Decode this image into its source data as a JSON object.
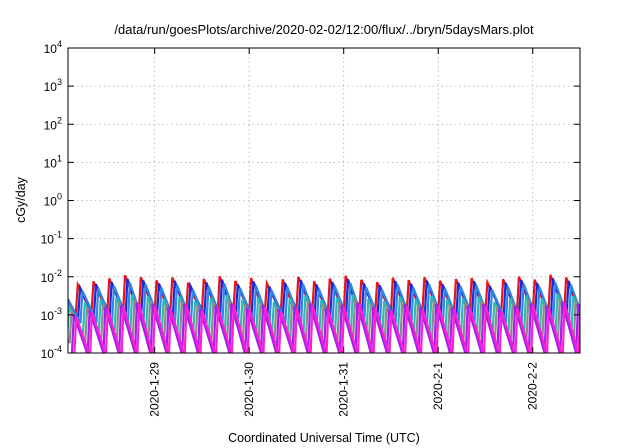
{
  "chart_data": {
    "type": "line",
    "title": "/data/run/goesPlots/archive/2020-02-02/12:00/flux/../bryn/5daysMars.plot",
    "xlabel": "Coordinated Universal Time (UTC)",
    "ylabel": "cGy/day",
    "yscale": "log",
    "ylim": [
      0.0001,
      10000
    ],
    "xlim": [
      "2020-01-28 02:00",
      "2020-02-02 12:00"
    ],
    "grid": true,
    "legend": "none",
    "y_ticks": [
      {
        "base": "10",
        "exp": "-4"
      },
      {
        "base": "10",
        "exp": "-3"
      },
      {
        "base": "10",
        "exp": "-2"
      },
      {
        "base": "10",
        "exp": "-1"
      },
      {
        "base": "10",
        "exp": "0"
      },
      {
        "base": "10",
        "exp": "1"
      },
      {
        "base": "10",
        "exp": "2"
      },
      {
        "base": "10",
        "exp": "3"
      },
      {
        "base": "10",
        "exp": "4"
      }
    ],
    "x_ticks": [
      "2020-1-29",
      "2020-1-30",
      "2020-1-31",
      "2020-2-1",
      "2020-2-2"
    ],
    "sawtooth_period_hours": 4,
    "series": [
      {
        "color": "#e8141a",
        "peaks": [
          0.0045,
          0.0062,
          0.0075,
          0.009,
          0.011,
          0.0098,
          0.008,
          0.0095,
          0.007,
          0.0088,
          0.0102,
          0.0078,
          0.0092,
          0.0068,
          0.0085,
          0.0099,
          0.0076,
          0.0089,
          0.0105,
          0.0083,
          0.0072,
          0.0094,
          0.0081,
          0.0097,
          0.0079,
          0.0087,
          0.0093,
          0.0071,
          0.0086,
          0.0101,
          0.0084,
          0.0112,
          0.0096
        ],
        "troughs": [
          0.001,
          0.0011,
          0.0012,
          0.0013,
          0.0011,
          0.0012,
          0.001,
          0.0013,
          0.0011,
          0.0012,
          0.001,
          0.0013,
          0.0011,
          0.0012,
          0.001,
          0.0013,
          0.0011,
          0.0012,
          0.001,
          0.0013,
          0.0011,
          0.0012,
          0.001,
          0.0013,
          0.0011,
          0.0012,
          0.001,
          0.0013,
          0.0011,
          0.0012,
          0.001,
          0.0013,
          0.0011
        ]
      },
      {
        "color": "#1a2ad6",
        "peaks": [
          0.0038,
          0.0052,
          0.0064,
          0.0072,
          0.0088,
          0.008,
          0.0066,
          0.0078,
          0.0058,
          0.0071,
          0.0084,
          0.0063,
          0.0075,
          0.0056,
          0.0069,
          0.0081,
          0.0062,
          0.0073,
          0.0086,
          0.0067,
          0.0059,
          0.0077,
          0.0065,
          0.0079,
          0.0063,
          0.007,
          0.0076,
          0.0057,
          0.007,
          0.0082,
          0.0068,
          0.0091,
          0.0078
        ],
        "troughs": [
          0.0008,
          0.0009,
          0.001,
          0.0009,
          0.0008,
          0.001,
          0.0009,
          0.0008,
          0.001,
          0.0009,
          0.0008,
          0.001,
          0.0009,
          0.0008,
          0.001,
          0.0009,
          0.0008,
          0.001,
          0.0009,
          0.0008,
          0.001,
          0.0009,
          0.0008,
          0.001,
          0.0009,
          0.0008,
          0.001,
          0.0009,
          0.0008,
          0.001,
          0.0009,
          0.0008,
          0.001
        ]
      },
      {
        "color": "#2f86e8",
        "peaks": [
          0.003,
          0.0042,
          0.005,
          0.0058,
          0.007,
          0.0063,
          0.0052,
          0.0061,
          0.0046,
          0.0056,
          0.0066,
          0.005,
          0.0059,
          0.0044,
          0.0054,
          0.0064,
          0.0049,
          0.0058,
          0.0068,
          0.0053,
          0.0047,
          0.0061,
          0.0052,
          0.0063,
          0.005,
          0.0055,
          0.006,
          0.0045,
          0.0055,
          0.0065,
          0.0054,
          0.0072,
          0.0062
        ],
        "troughs": [
          0.0006,
          0.0007,
          0.0006,
          0.0007,
          0.0006,
          0.0007,
          0.0006,
          0.0007,
          0.0006,
          0.0007,
          0.0006,
          0.0007,
          0.0006,
          0.0007,
          0.0006,
          0.0007,
          0.0006,
          0.0007,
          0.0006,
          0.0007,
          0.0006,
          0.0007,
          0.0006,
          0.0007,
          0.0006,
          0.0007,
          0.0006,
          0.0007,
          0.0006,
          0.0007,
          0.0006,
          0.0007,
          0.0006
        ]
      },
      {
        "color": "#2fb8b0",
        "peaks": [
          0.0016,
          0.0021,
          0.0025,
          0.0029,
          0.0034,
          0.0031,
          0.0026,
          0.003,
          0.0023,
          0.0028,
          0.0033,
          0.0025,
          0.0029,
          0.0022,
          0.0027,
          0.0032,
          0.0024,
          0.0029,
          0.0034,
          0.0026,
          0.0023,
          0.003,
          0.0026,
          0.0031,
          0.0025,
          0.0027,
          0.003,
          0.0022,
          0.0027,
          0.0032,
          0.0027,
          0.0036,
          0.0031
        ],
        "troughs": [
          0.0003,
          0.00035,
          0.00032,
          0.00036,
          0.00031,
          0.00034,
          0.0003,
          0.00035,
          0.00032,
          0.00036,
          0.00031,
          0.00034,
          0.0003,
          0.00035,
          0.00032,
          0.00036,
          0.00031,
          0.00034,
          0.0003,
          0.00035,
          0.00032,
          0.00036,
          0.00031,
          0.00034,
          0.0003,
          0.00035,
          0.00032,
          0.00036,
          0.00031,
          0.00034,
          0.0003,
          0.00035,
          0.00032
        ]
      },
      {
        "color": "#8a8a8a",
        "peaks": [
          0.0012,
          0.0016,
          0.0019,
          0.0022,
          0.0026,
          0.0024,
          0.002,
          0.0023,
          0.0018,
          0.0021,
          0.0025,
          0.0019,
          0.0022,
          0.0017,
          0.0021,
          0.0024,
          0.0019,
          0.0022,
          0.0026,
          0.002,
          0.0018,
          0.0023,
          0.002,
          0.0024,
          0.0019,
          0.0021,
          0.0023,
          0.0017,
          0.0021,
          0.0025,
          0.0021,
          0.0027,
          0.0024
        ],
        "troughs": [
          0.00018,
          0.0002,
          0.00019,
          0.00021,
          0.00018,
          0.0002,
          0.00019,
          0.00021,
          0.00018,
          0.0002,
          0.00019,
          0.00021,
          0.00018,
          0.0002,
          0.00019,
          0.00021,
          0.00018,
          0.0002,
          0.00019,
          0.00021,
          0.00018,
          0.0002,
          0.00019,
          0.00021,
          0.00018,
          0.0002,
          0.00019,
          0.00021,
          0.00018,
          0.0002,
          0.00019,
          0.00021,
          0.00018
        ]
      },
      {
        "color": "#a020f0",
        "peaks": [
          0.001,
          0.0013,
          0.0016,
          0.0018,
          0.0021,
          0.0019,
          0.0016,
          0.0019,
          0.0014,
          0.0017,
          0.002,
          0.0015,
          0.0018,
          0.0014,
          0.0017,
          0.002,
          0.0015,
          0.0018,
          0.0021,
          0.0016,
          0.0014,
          0.0019,
          0.0016,
          0.0019,
          0.0015,
          0.0017,
          0.0019,
          0.0014,
          0.0017,
          0.002,
          0.0017,
          0.0022,
          0.0019
        ],
        "troughs": [
          9e-05,
          0.0001,
          9e-05,
          0.0001,
          9e-05,
          0.0001,
          9e-05,
          0.0001,
          9e-05,
          0.0001,
          9e-05,
          0.0001,
          9e-05,
          0.0001,
          9e-05,
          0.0001,
          9e-05,
          0.0001,
          9e-05,
          0.0001,
          9e-05,
          0.0001,
          9e-05,
          0.0001,
          9e-05,
          0.0001,
          9e-05,
          0.0001,
          9e-05,
          0.0001,
          9e-05,
          0.0001,
          9e-05
        ]
      },
      {
        "color": "#ff1fd2",
        "peaks": [
          0.0009,
          0.0012,
          0.0014,
          0.0016,
          0.0019,
          0.0017,
          0.0014,
          0.0017,
          0.0013,
          0.0015,
          0.0018,
          0.0014,
          0.0016,
          0.0012,
          0.0015,
          0.0018,
          0.0013,
          0.0016,
          0.0019,
          0.0015,
          0.0013,
          0.0017,
          0.0014,
          0.0017,
          0.0014,
          0.0015,
          0.0017,
          0.0012,
          0.0015,
          0.0018,
          0.0015,
          0.002,
          0.0017
        ],
        "troughs": [
          8e-05,
          9e-05,
          8e-05,
          9e-05,
          8e-05,
          9e-05,
          8e-05,
          9e-05,
          8e-05,
          9e-05,
          8e-05,
          9e-05,
          8e-05,
          9e-05,
          8e-05,
          9e-05,
          8e-05,
          9e-05,
          8e-05,
          9e-05,
          8e-05,
          9e-05,
          8e-05,
          9e-05,
          8e-05,
          9e-05,
          8e-05,
          9e-05,
          8e-05,
          9e-05,
          8e-05,
          9e-05,
          8e-05
        ]
      }
    ]
  }
}
